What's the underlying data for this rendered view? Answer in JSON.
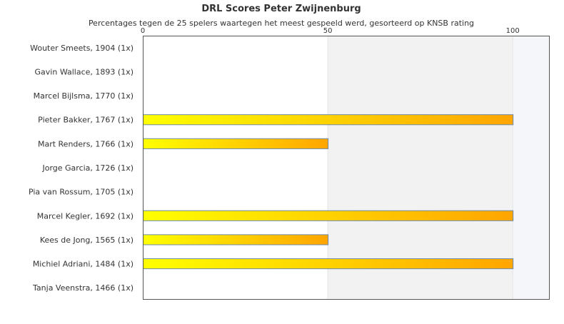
{
  "chart_data": {
    "type": "bar",
    "orientation": "horizontal",
    "title": "DRL Scores Peter Zwijnenburg",
    "subtitle": "Percentages tegen de 25 spelers waartegen het meest gespeeld werd, gesorteerd op KNSB rating",
    "xlabel": "",
    "ylabel": "",
    "xlim": [
      0,
      110
    ],
    "x_ticks": [
      "0",
      "50",
      "100"
    ],
    "x_tick_values": [
      0,
      50,
      100
    ],
    "axis_position": "top",
    "grid": true,
    "legend": "none",
    "colors": {
      "bar_start": "#ffff00",
      "bar_end": "#ffa500",
      "bar_stroke": "#6e8aa8",
      "band_light": "#ffffff",
      "band_mid": "#f2f2f2",
      "band_right": "#f5f6fa",
      "frame": "#555555"
    },
    "categories": [
      "Wouter Smeets, 1904 (1x)",
      "Gavin Wallace, 1893 (1x)",
      "Marcel Bijlsma, 1770 (1x)",
      "Pieter Bakker, 1767 (1x)",
      "Mart Renders, 1766 (1x)",
      "Jorge Garcia, 1726 (1x)",
      "Pia van Rossum, 1705 (1x)",
      "Marcel Kegler, 1692 (1x)",
      "Kees de Jong, 1565 (1x)",
      "Michiel Adriani, 1484 (1x)",
      "Tanja Veenstra, 1466 (1x)"
    ],
    "values": [
      0,
      0,
      0,
      100,
      50,
      0,
      0,
      100,
      50,
      100,
      0
    ]
  }
}
